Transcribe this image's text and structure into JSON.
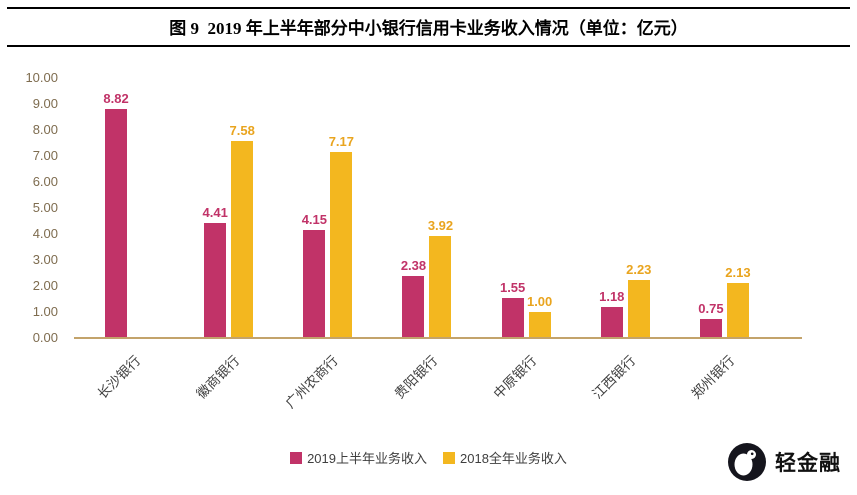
{
  "title": "图 9  2019 年上半年部分中小银行信用卡业务收入情况（单位：亿元）",
  "logo": {
    "text": "轻金融"
  },
  "colors": {
    "series1": "#c13368",
    "series2": "#f3b71f",
    "axis_line": "#c3a36b",
    "y_tick_text": "#7e6c4f",
    "category_text": "#3f3f3f"
  },
  "chart_data": {
    "type": "bar",
    "title": "图 9  2019 年上半年部分中小银行信用卡业务收入情况（单位：亿元）",
    "categories": [
      "长沙银行",
      "徽商银行",
      "广州农商行",
      "贵阳银行",
      "中原银行",
      "江西银行",
      "郑州银行"
    ],
    "series": [
      {
        "name": "2019上半年业务收入",
        "color": "#c13368",
        "label_color": "#c13368",
        "values": [
          8.82,
          4.41,
          4.15,
          2.38,
          1.55,
          1.18,
          0.75
        ]
      },
      {
        "name": "2018全年业务收入",
        "color": "#f3b71f",
        "label_color": "#e9a41e",
        "values": [
          null,
          7.58,
          7.17,
          3.92,
          1.0,
          2.23,
          2.13
        ]
      }
    ],
    "xlabel": "",
    "ylabel": "",
    "ylim": [
      0,
      10
    ],
    "ytick_step": 1,
    "ytick_labels": [
      "0.00",
      "1.00",
      "2.00",
      "3.00",
      "4.00",
      "5.00",
      "6.00",
      "7.00",
      "8.00",
      "9.00",
      "10.00"
    ],
    "grid": false,
    "legend_position": "bottom"
  }
}
